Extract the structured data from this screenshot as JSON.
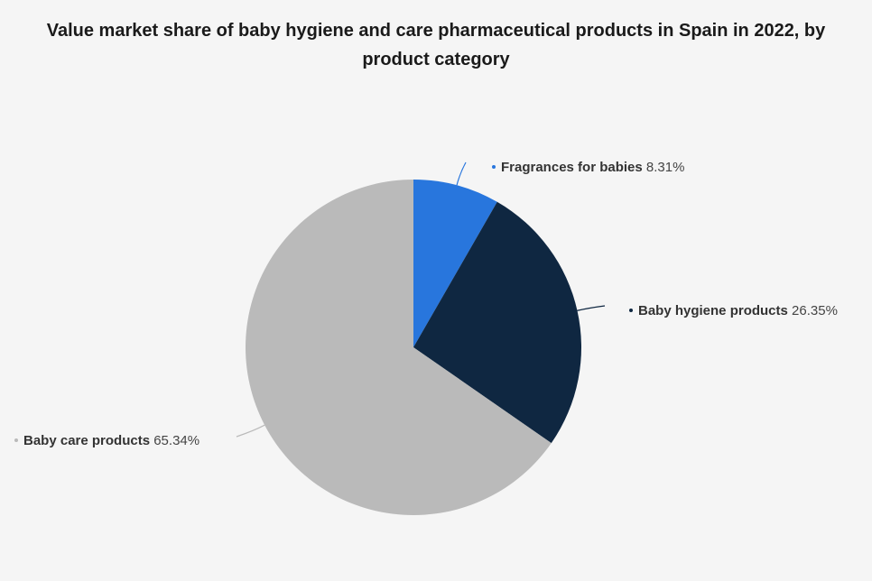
{
  "chart_data": {
    "type": "pie",
    "title": "Value market share of baby hygiene and care pharmaceutical products in Spain in 2022, by product category",
    "categories": [
      "Fragrances for babies",
      "Baby hygiene products",
      "Baby care products"
    ],
    "values": [
      8.31,
      26.35,
      65.34
    ],
    "value_labels": [
      "8.31%",
      "26.35%",
      "65.34%"
    ],
    "unit": "%",
    "colors": [
      "#2876dd",
      "#0f2741",
      "#bababa"
    ],
    "start_angle_deg": 0,
    "direction": "clockwise",
    "legend": "none"
  }
}
